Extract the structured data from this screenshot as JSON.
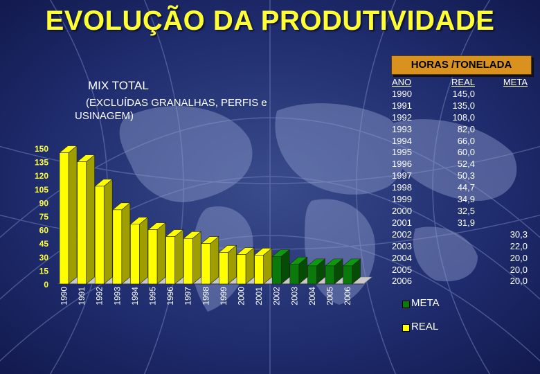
{
  "slide": {
    "title": "EVOLUÇÃO DA PRODUTIVIDADE",
    "header_box": "HORAS /TONELADA",
    "mix_title": "MIX TOTAL",
    "mix_subtitle": "(EXCLUÍDAS GRANALHAS, PERFIS e USINAGEM)",
    "colors": {
      "title": "#ffff33",
      "real": "#ffff00",
      "meta": "#0a7a0a",
      "header_box": "#d9921e",
      "background": "#1a2466"
    }
  },
  "table": {
    "headers": {
      "ano": "ANO",
      "real": "REAL",
      "meta": "META"
    },
    "rows": [
      {
        "ano": "1990",
        "real": "145,0",
        "meta": ""
      },
      {
        "ano": "1991",
        "real": "135,0",
        "meta": ""
      },
      {
        "ano": "1992",
        "real": "108,0",
        "meta": ""
      },
      {
        "ano": "1993",
        "real": "82,0",
        "meta": ""
      },
      {
        "ano": "1994",
        "real": "66,0",
        "meta": ""
      },
      {
        "ano": "1995",
        "real": "60,0",
        "meta": ""
      },
      {
        "ano": "1996",
        "real": "52,4",
        "meta": ""
      },
      {
        "ano": "1997",
        "real": "50,3",
        "meta": ""
      },
      {
        "ano": "1998",
        "real": "44,7",
        "meta": ""
      },
      {
        "ano": "1999",
        "real": "34,9",
        "meta": ""
      },
      {
        "ano": "2000",
        "real": "32,5",
        "meta": ""
      },
      {
        "ano": "2001",
        "real": "31,9",
        "meta": ""
      },
      {
        "ano": "2002",
        "real": "",
        "meta": "30,3"
      },
      {
        "ano": "2003",
        "real": "",
        "meta": "22,0"
      },
      {
        "ano": "2004",
        "real": "",
        "meta": "20,0"
      },
      {
        "ano": "2005",
        "real": "",
        "meta": "20,0"
      },
      {
        "ano": "2006",
        "real": "",
        "meta": "20,0"
      }
    ]
  },
  "legend": [
    {
      "label": "META",
      "color": "#0a7a0a"
    },
    {
      "label": "REAL",
      "color": "#ffff00"
    }
  ],
  "chart_data": {
    "type": "bar",
    "categories": [
      "1990",
      "1991",
      "1992",
      "1993",
      "1994",
      "1995",
      "1996",
      "1997",
      "1998",
      "1999",
      "2000",
      "2001",
      "2002",
      "2003",
      "2004",
      "2005",
      "2006"
    ],
    "series": [
      {
        "name": "REAL",
        "color": "#ffff00",
        "values": [
          145,
          135,
          108,
          82,
          66,
          60,
          52.4,
          50.3,
          44.7,
          34.9,
          32.5,
          31.9,
          null,
          null,
          null,
          null,
          null
        ]
      },
      {
        "name": "META",
        "color": "#0a7a0a",
        "values": [
          null,
          null,
          null,
          null,
          null,
          null,
          null,
          null,
          null,
          null,
          null,
          null,
          30.3,
          22,
          20,
          20,
          20
        ]
      }
    ],
    "yticks": [
      "0",
      "15",
      "30",
      "45",
      "60",
      "75",
      "90",
      "105",
      "120",
      "135",
      "150"
    ],
    "ylim": [
      0,
      150
    ],
    "bar_style": "3d",
    "grid": false
  }
}
